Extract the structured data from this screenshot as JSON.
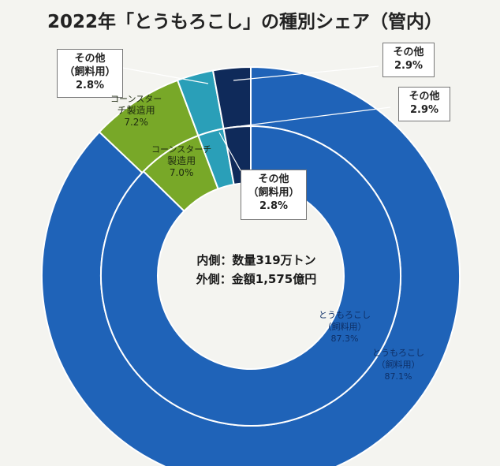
{
  "chart_data": {
    "type": "pie",
    "title": "2022年「とうもろこし」の種別シェア（管内）",
    "rings": [
      {
        "ring": "inner",
        "slices": [
          {
            "label": "とうもろこし（飼料用）",
            "value": 87.3,
            "color": "#1f63b8"
          },
          {
            "label": "コーンスターチ製造用",
            "value": 7.0,
            "color": "#78a828"
          },
          {
            "label": "その他（飼料用）",
            "value": 2.8,
            "color": "#2a9fb8"
          },
          {
            "label": "その他",
            "value": 2.9,
            "color": "#0f2a5a"
          }
        ]
      },
      {
        "ring": "outer",
        "slices": [
          {
            "label": "とうもろこし（飼料用）",
            "value": 87.1,
            "color": "#1f63b8"
          },
          {
            "label": "コーンスターチ製造用",
            "value": 7.2,
            "color": "#78a828"
          },
          {
            "label": "その他（飼料用）",
            "value": 2.8,
            "color": "#2a9fb8"
          },
          {
            "label": "その他",
            "value": 2.9,
            "color": "#0f2a5a"
          }
        ]
      }
    ],
    "center_text": [
      "内側：数量319万トン",
      "外側：金額1,575億円"
    ]
  },
  "labels": {
    "outer_other": {
      "name": "その他",
      "value": "2.9%"
    },
    "inner_other": {
      "name": "その他",
      "value": "2.9%"
    },
    "outer_feed_other": {
      "line1": "その他",
      "line2": "（飼料用）",
      "value": "2.8%"
    },
    "inner_feed_other": {
      "line1": "その他",
      "line2": "（飼料用）",
      "value": "2.8%"
    },
    "outer_starch": {
      "line1": "コーンスター",
      "line2": "チ製造用",
      "value": "7.2%"
    },
    "inner_starch": {
      "line1": "コーンスターチ",
      "line2": "製造用",
      "value": "7.0%"
    },
    "inner_corn": {
      "line1": "とうもろこし",
      "line2": "（飼料用）",
      "value": "87.3%"
    },
    "outer_corn": {
      "line1": "とうもろこし",
      "line2": "（飼料用）",
      "value": "87.1%"
    }
  }
}
